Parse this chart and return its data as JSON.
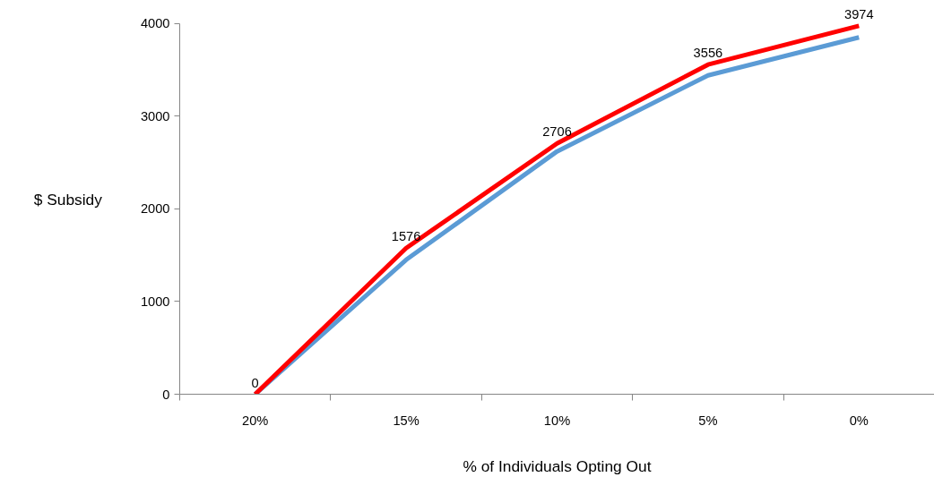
{
  "chart_data": {
    "type": "line",
    "xlabel": "% of Individuals Opting Out",
    "ylabel": "$ Subsidy",
    "categories": [
      "20%",
      "15%",
      "10%",
      "5%",
      "0%"
    ],
    "series": [
      {
        "color": "#5b9bd5",
        "values": [
          0,
          1450,
          2620,
          3440,
          3850
        ]
      },
      {
        "color": "#ff0000",
        "values": [
          0,
          1576,
          2706,
          3556,
          3974
        ],
        "value_labels": [
          "0",
          "1576",
          "2706",
          "3556",
          "3974"
        ]
      }
    ],
    "ylim": [
      0,
      4000
    ],
    "yticks": [
      0,
      1000,
      2000,
      3000,
      4000
    ],
    "grid": false,
    "legend": false,
    "marker": "none",
    "line_style": "solid"
  }
}
